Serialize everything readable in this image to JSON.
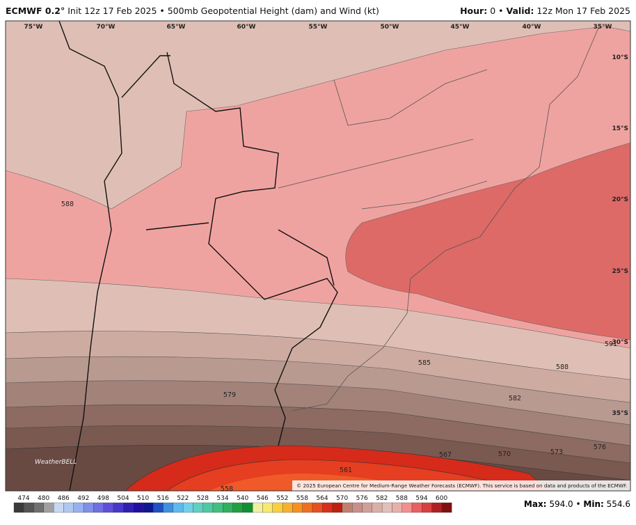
{
  "header": {
    "model": "ECMWF 0.2°",
    "title": "Init 12z 17 Feb 2025 • 500mb Geopotential Height (dam) and Wind (kt)",
    "hour_label": "Hour:",
    "hour_value": "0 •",
    "valid_label": "Valid:",
    "valid_value": "12z Mon 17 Feb 2025"
  },
  "map": {
    "longitudes": [
      "75°W",
      "70°W",
      "65°W",
      "60°W",
      "55°W",
      "50°W",
      "45°W",
      "40°W",
      "35°W"
    ],
    "latitudes": [
      "10°S",
      "15°S",
      "20°S",
      "25°S",
      "30°S",
      "35°S"
    ],
    "contour_labels": [
      "588",
      "591",
      "585",
      "588",
      "582",
      "579",
      "576",
      "573",
      "570",
      "567",
      "561",
      "558"
    ],
    "watermark": "WeatherBELL",
    "copyright": "© 2025 European Centre for Medium-Range Weather Forecasts (ECMWF). This service is based on data and products of the ECMWF."
  },
  "colorbar": {
    "labels": [
      "474",
      "480",
      "486",
      "492",
      "498",
      "504",
      "510",
      "516",
      "522",
      "528",
      "534",
      "540",
      "546",
      "552",
      "558",
      "564",
      "570",
      "576",
      "582",
      "588",
      "594",
      "600"
    ],
    "colors": [
      "#3a3a3a",
      "#555555",
      "#707070",
      "#a0a0a0",
      "#c8d8f0",
      "#b0c8f0",
      "#98b0f0",
      "#8090e8",
      "#7070e0",
      "#6050d8",
      "#4838c8",
      "#3020b0",
      "#2010a0",
      "#101890",
      "#2050c0",
      "#4090e0",
      "#60b8f0",
      "#70d0e8",
      "#60d0c0",
      "#50c8a0",
      "#40c080",
      "#30b060",
      "#20a040",
      "#109030",
      "#f0f0a0",
      "#f8e870",
      "#f8d040",
      "#f8b030",
      "#f89020",
      "#f07020",
      "#e85020",
      "#d83018",
      "#c02010",
      "#c08070",
      "#c89088",
      "#d0a098",
      "#d8b0a8",
      "#e0c0b8",
      "#e8b0a8",
      "#f09090",
      "#e86060",
      "#d84040",
      "#b02020",
      "#801010"
    ]
  },
  "footer": {
    "max_label": "Max:",
    "max_value": "594.0",
    "separator": "•",
    "min_label": "Min:",
    "min_value": "554.6"
  }
}
